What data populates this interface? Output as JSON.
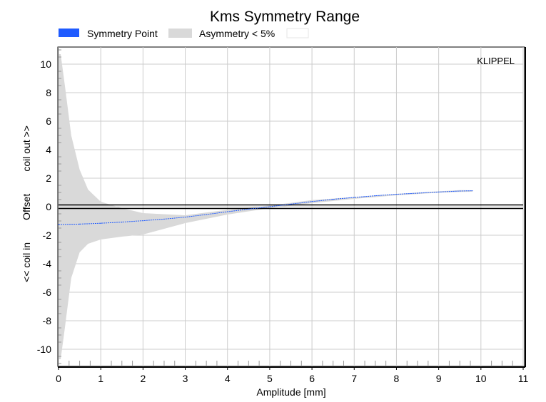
{
  "chart_data": {
    "type": "area",
    "title": "Kms Symmetry Range",
    "xlabel": "Amplitude [mm]",
    "ylabel": "<< coil in        Offset        coil out >>",
    "xlim": [
      0,
      11
    ],
    "ylim": [
      -11.2,
      11.2
    ],
    "x_ticks": [
      "0",
      "1",
      "2",
      "3",
      "4",
      "5",
      "6",
      "7",
      "8",
      "9",
      "10",
      "11"
    ],
    "y_ticks": [
      "10",
      "8",
      "6",
      "4",
      "2",
      "0",
      "-2",
      "-4",
      "-6",
      "-8",
      "-10"
    ],
    "grid": true,
    "legend": [
      {
        "name": "Symmetry Point",
        "color": "#1f5bff"
      },
      {
        "name": "Asymmetry < 5%",
        "color": "#d9d9d9"
      }
    ],
    "watermark": "KLIPPEL",
    "series": [
      {
        "name": "Symmetry Point",
        "type": "line",
        "x": [
          0,
          0.5,
          1,
          1.5,
          2,
          2.5,
          3,
          3.5,
          4,
          4.5,
          5,
          5.5,
          6,
          6.5,
          7,
          7.5,
          8,
          8.5,
          9,
          9.5,
          9.8
        ],
        "y": [
          -1.25,
          -1.22,
          -1.16,
          -1.08,
          -0.98,
          -0.87,
          -0.73,
          -0.55,
          -0.35,
          -0.17,
          0.0,
          0.18,
          0.36,
          0.52,
          0.65,
          0.77,
          0.87,
          0.95,
          1.03,
          1.1,
          1.12
        ]
      },
      {
        "name": "Asymmetry < 5%",
        "type": "band",
        "x": [
          0,
          0.05,
          0.15,
          0.3,
          0.5,
          0.7,
          1,
          1.5,
          2,
          3,
          4,
          5,
          6,
          7,
          8,
          9,
          9.5,
          9.8
        ],
        "upper": [
          10.7,
          10.7,
          8.5,
          5.0,
          2.6,
          1.2,
          0.35,
          -0.1,
          -0.45,
          -0.6,
          -0.22,
          0.08,
          0.46,
          0.68,
          0.9,
          1.08,
          1.16,
          1.15
        ],
        "lower": [
          -10.7,
          -10.7,
          -8.5,
          -5.0,
          -3.2,
          -2.6,
          -2.3,
          -2.1,
          -1.95,
          -1.15,
          -0.55,
          -0.1,
          0.25,
          0.55,
          0.8,
          0.98,
          1.04,
          1.05
        ]
      }
    ],
    "reference_line_y": 0
  }
}
